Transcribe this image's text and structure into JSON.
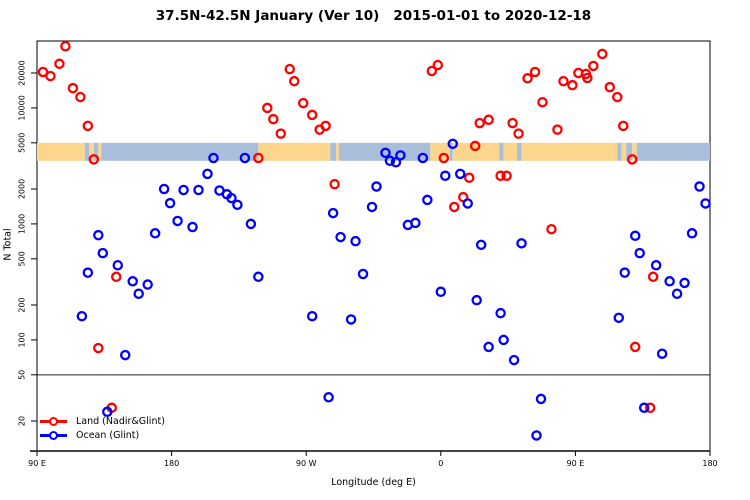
{
  "chart_data": {
    "type": "scatter",
    "title": "37.5N-42.5N January (Ver 10)   2015-01-01 to 2020-12-18",
    "xlabel": "Longitude (deg E)",
    "ylabel": "N Total",
    "x_axis": {
      "domain": [
        90,
        540
      ],
      "ticks": [
        {
          "pos": 90,
          "label": "90 E"
        },
        {
          "pos": 180,
          "label": "180"
        },
        {
          "pos": 270,
          "label": "90 W"
        },
        {
          "pos": 360,
          "label": "0"
        },
        {
          "pos": 450,
          "label": "90 E"
        },
        {
          "pos": 540,
          "label": "180"
        }
      ]
    },
    "y_axis": {
      "scale": "log",
      "domain": [
        11,
        37800
      ],
      "ticks": [
        20,
        50,
        100,
        200,
        500,
        1000,
        2000,
        5000,
        10000,
        20000
      ]
    },
    "reference_line_y": 50,
    "surface_band": {
      "n_range": [
        3500,
        5000
      ],
      "land_color": "#fbd68c",
      "ocean_color": "#a9bedb",
      "segments": [
        [
          90,
          122,
          "land"
        ],
        [
          122,
          125,
          "ocean"
        ],
        [
          125,
          128,
          "land"
        ],
        [
          128,
          131,
          "ocean"
        ],
        [
          131,
          133,
          "land"
        ],
        [
          133,
          238,
          "ocean"
        ],
        [
          238,
          286,
          "land"
        ],
        [
          286,
          290,
          "ocean"
        ],
        [
          290,
          292,
          "land"
        ],
        [
          292,
          353,
          "ocean"
        ],
        [
          353,
          366,
          "land"
        ],
        [
          366,
          368,
          "ocean"
        ],
        [
          368,
          399,
          "land"
        ],
        [
          399,
          402,
          "ocean"
        ],
        [
          402,
          411,
          "land"
        ],
        [
          411,
          414,
          "ocean"
        ],
        [
          414,
          478,
          "land"
        ],
        [
          478,
          481,
          "ocean"
        ],
        [
          481,
          484,
          "land"
        ],
        [
          484,
          488,
          "ocean"
        ],
        [
          488,
          491,
          "land"
        ],
        [
          491,
          540,
          "ocean"
        ]
      ]
    },
    "series": [
      {
        "name": "Land (Nadir&Glint)",
        "color": "#ff0000",
        "points": [
          [
            109,
            34000
          ],
          [
            105,
            24000
          ],
          [
            94,
            20400
          ],
          [
            99,
            18800
          ],
          [
            114,
            14800
          ],
          [
            119,
            12400
          ],
          [
            124,
            7000
          ],
          [
            128,
            3600
          ],
          [
            259,
            21600
          ],
          [
            262,
            17000
          ],
          [
            268,
            11000
          ],
          [
            274,
            8700
          ],
          [
            244,
            10000
          ],
          [
            248,
            8000
          ],
          [
            253,
            6000
          ],
          [
            283,
            7000
          ],
          [
            279,
            6500
          ],
          [
            358,
            23400
          ],
          [
            354,
            20800
          ],
          [
            238,
            3700
          ],
          [
            386,
            7400
          ],
          [
            392,
            7900
          ],
          [
            383,
            4700
          ],
          [
            289,
            2200
          ],
          [
            379,
            2500
          ],
          [
            418,
            18000
          ],
          [
            423,
            20400
          ],
          [
            442,
            17000
          ],
          [
            448,
            15700
          ],
          [
            452,
            20000
          ],
          [
            457,
            19600
          ],
          [
            458,
            18100
          ],
          [
            462,
            23000
          ],
          [
            468,
            29200
          ],
          [
            473,
            15100
          ],
          [
            478,
            12400
          ],
          [
            428,
            11200
          ],
          [
            408,
            7400
          ],
          [
            412,
            6000
          ],
          [
            438,
            6500
          ],
          [
            482,
            7000
          ],
          [
            488,
            3600
          ],
          [
            400,
            2600
          ],
          [
            404,
            2600
          ],
          [
            143,
            350
          ],
          [
            375,
            1700
          ],
          [
            369,
            1400
          ],
          [
            434,
            900
          ],
          [
            502,
            350
          ],
          [
            131,
            85
          ],
          [
            140,
            26
          ],
          [
            490,
            87
          ],
          [
            500,
            26
          ],
          [
            362,
            3700
          ]
        ]
      },
      {
        "name": "Ocean (Glint)",
        "color": "#0000ff",
        "points": [
          [
            208,
            3700
          ],
          [
            229,
            3700
          ],
          [
            204,
            2700
          ],
          [
            175,
            2000
          ],
          [
            188,
            1960
          ],
          [
            198,
            1960
          ],
          [
            212,
            1940
          ],
          [
            217,
            1800
          ],
          [
            220,
            1670
          ],
          [
            224,
            1460
          ],
          [
            179,
            1510
          ],
          [
            184,
            1060
          ],
          [
            194,
            940
          ],
          [
            233,
            1000
          ],
          [
            169,
            830
          ],
          [
            131,
            800
          ],
          [
            134,
            560
          ],
          [
            144,
            440
          ],
          [
            124,
            380
          ],
          [
            154,
            320
          ],
          [
            164,
            300
          ],
          [
            158,
            250
          ],
          [
            120,
            160
          ],
          [
            323,
            4100
          ],
          [
            326,
            3500
          ],
          [
            330,
            3400
          ],
          [
            333,
            3900
          ],
          [
            348,
            3700
          ],
          [
            368,
            4900
          ],
          [
            363,
            2600
          ],
          [
            373,
            2700
          ],
          [
            317,
            2100
          ],
          [
            533,
            2100
          ],
          [
            351,
            1610
          ],
          [
            378,
            1500
          ],
          [
            314,
            1400
          ],
          [
            288,
            1240
          ],
          [
            338,
            980
          ],
          [
            343,
            1020
          ],
          [
            293,
            770
          ],
          [
            303,
            710
          ],
          [
            387,
            660
          ],
          [
            308,
            370
          ],
          [
            360,
            260
          ],
          [
            384,
            220
          ],
          [
            274,
            160
          ],
          [
            300,
            150
          ],
          [
            238,
            350
          ],
          [
            537,
            1500
          ],
          [
            414,
            680
          ],
          [
            490,
            790
          ],
          [
            528,
            830
          ],
          [
            493,
            560
          ],
          [
            504,
            440
          ],
          [
            483,
            380
          ],
          [
            513,
            320
          ],
          [
            523,
            310
          ],
          [
            518,
            250
          ],
          [
            400,
            170
          ],
          [
            479,
            155
          ],
          [
            149,
            74
          ],
          [
            137,
            24
          ],
          [
            285,
            32
          ],
          [
            402,
            100
          ],
          [
            409,
            67
          ],
          [
            392,
            87
          ],
          [
            508,
            76
          ],
          [
            427,
            31
          ],
          [
            424,
            15
          ],
          [
            496,
            26
          ]
        ]
      }
    ]
  }
}
